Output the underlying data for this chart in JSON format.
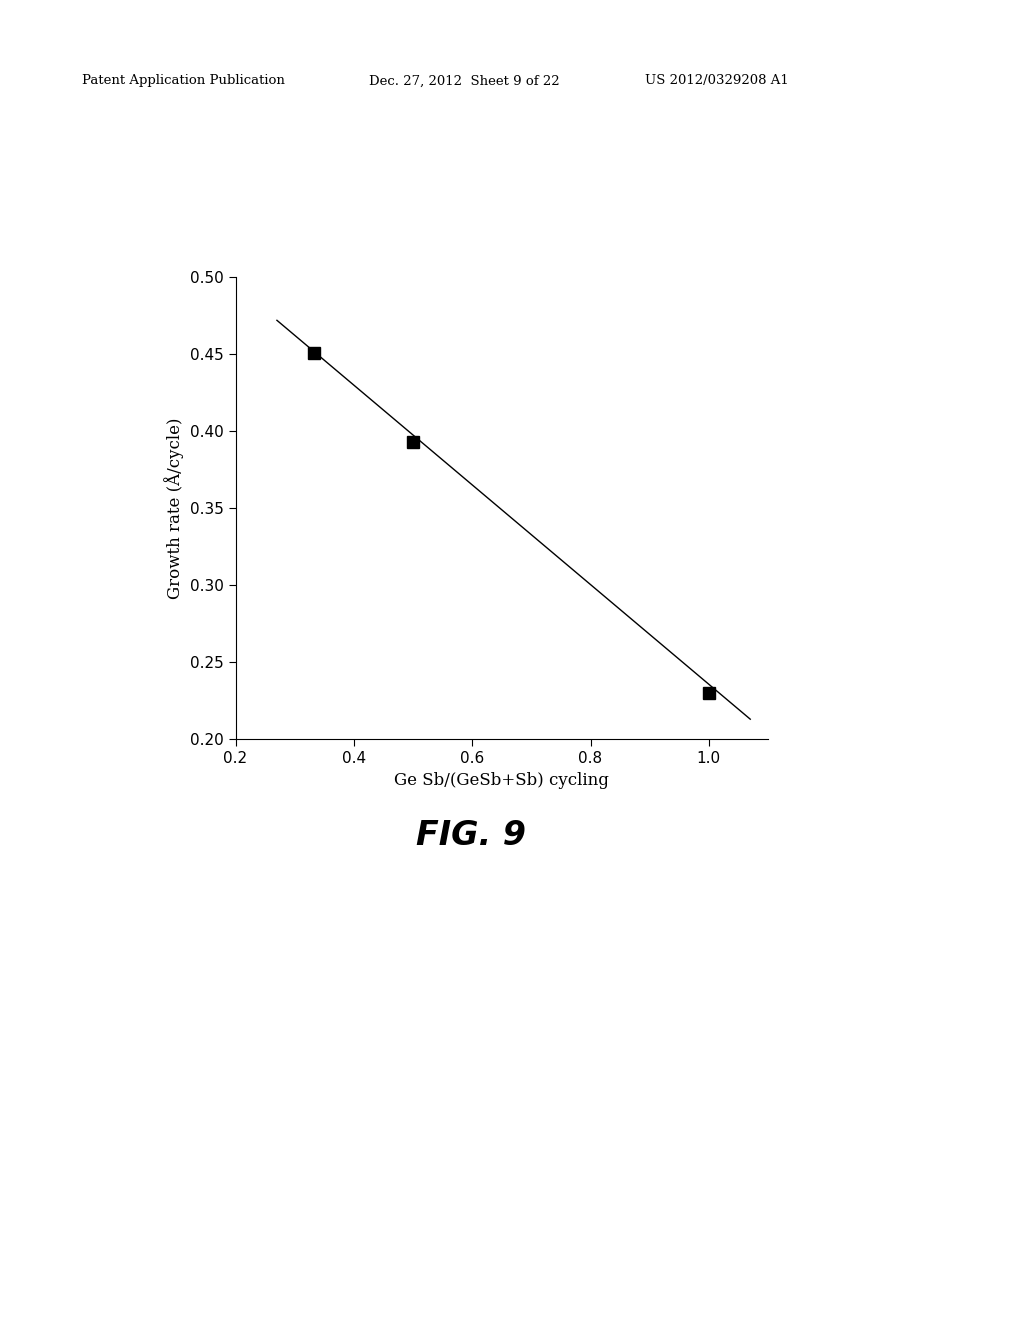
{
  "x_data": [
    0.333,
    0.5,
    1.0
  ],
  "y_data": [
    0.451,
    0.393,
    0.23
  ],
  "line_x": [
    0.27,
    1.07
  ],
  "line_y": [
    0.472,
    0.213
  ],
  "xlim": [
    0.2,
    1.1
  ],
  "ylim": [
    0.2,
    0.5
  ],
  "xticks": [
    0.2,
    0.4,
    0.6,
    0.8,
    1.0
  ],
  "yticks": [
    0.2,
    0.25,
    0.3,
    0.35,
    0.4,
    0.45,
    0.5
  ],
  "xlabel": "Ge Sb/(GeSb+Sb) cycling",
  "ylabel": "Growth rate (Å/cycle)",
  "fig_label": "FIG. 9",
  "header_left": "Patent Application Publication",
  "header_mid": "Dec. 27, 2012  Sheet 9 of 22",
  "header_right": "US 2012/0329208 A1",
  "marker_color": "#000000",
  "marker_size": 8,
  "line_color": "#000000",
  "background_color": "#ffffff"
}
